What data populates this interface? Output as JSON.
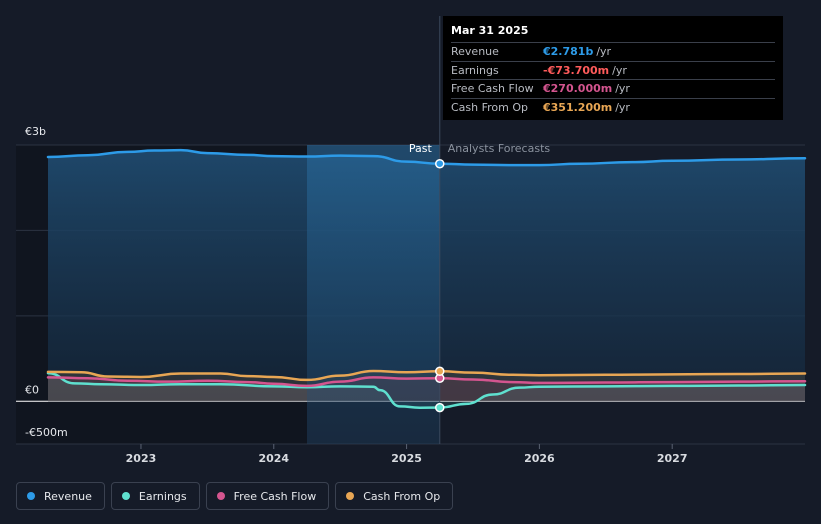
{
  "chart_data": {
    "type": "area",
    "currency": "€",
    "y_axis": {
      "ylim": [
        -500,
        3000
      ],
      "label_top": "€3b",
      "label_zero": "€0",
      "label_bottom": "-€500m"
    },
    "x_axis": {
      "xlim": [
        2022.3,
        2028.0
      ],
      "ticks": [
        2023,
        2024,
        2025,
        2026,
        2027
      ],
      "tick_labels": [
        "2023",
        "2024",
        "2025",
        "2026",
        "2027"
      ]
    },
    "divider_x": 2025.25,
    "highlight_start_x": 2024.25,
    "past_label": "Past",
    "forecast_label": "Analysts Forecasts",
    "grid": true,
    "legend_placement": "bottom-left",
    "series": [
      {
        "name": "Revenue",
        "key": "revenue",
        "color": "#2d9be8",
        "points": [
          [
            2022.3,
            2860
          ],
          [
            2022.6,
            2880
          ],
          [
            2022.9,
            2920
          ],
          [
            2023.1,
            2935
          ],
          [
            2023.3,
            2940
          ],
          [
            2023.5,
            2905
          ],
          [
            2023.8,
            2885
          ],
          [
            2024.0,
            2870
          ],
          [
            2024.25,
            2865
          ],
          [
            2024.5,
            2875
          ],
          [
            2024.75,
            2870
          ],
          [
            2025.0,
            2805
          ],
          [
            2025.25,
            2781
          ],
          [
            2025.5,
            2770
          ],
          [
            2025.8,
            2765
          ],
          [
            2026.0,
            2765
          ],
          [
            2026.3,
            2780
          ],
          [
            2026.7,
            2800
          ],
          [
            2027.0,
            2815
          ],
          [
            2027.5,
            2830
          ],
          [
            2028.0,
            2845
          ]
        ]
      },
      {
        "name": "Earnings",
        "key": "earnings",
        "color": "#5fe0cf",
        "points": [
          [
            2022.3,
            330
          ],
          [
            2022.5,
            210
          ],
          [
            2022.7,
            200
          ],
          [
            2023.0,
            190
          ],
          [
            2023.3,
            200
          ],
          [
            2023.6,
            200
          ],
          [
            2024.0,
            175
          ],
          [
            2024.25,
            165
          ],
          [
            2024.5,
            175
          ],
          [
            2024.75,
            170
          ],
          [
            2024.8,
            130
          ],
          [
            2024.95,
            -60
          ],
          [
            2025.1,
            -75
          ],
          [
            2025.25,
            -73.7
          ],
          [
            2025.45,
            -30
          ],
          [
            2025.65,
            80
          ],
          [
            2025.85,
            160
          ],
          [
            2026.0,
            170
          ],
          [
            2026.5,
            175
          ],
          [
            2027.0,
            180
          ],
          [
            2027.5,
            185
          ],
          [
            2028.0,
            190
          ]
        ]
      },
      {
        "name": "Free Cash Flow",
        "key": "fcf",
        "color": "#d4558f",
        "points": [
          [
            2022.3,
            280
          ],
          [
            2022.6,
            270
          ],
          [
            2022.9,
            240
          ],
          [
            2023.2,
            230
          ],
          [
            2023.5,
            240
          ],
          [
            2023.8,
            225
          ],
          [
            2024.0,
            205
          ],
          [
            2024.25,
            180
          ],
          [
            2024.5,
            230
          ],
          [
            2024.75,
            280
          ],
          [
            2025.0,
            265
          ],
          [
            2025.25,
            270
          ],
          [
            2025.5,
            255
          ],
          [
            2025.8,
            225
          ],
          [
            2026.0,
            215
          ],
          [
            2026.5,
            220
          ],
          [
            2027.0,
            225
          ],
          [
            2027.5,
            230
          ],
          [
            2028.0,
            235
          ]
        ]
      },
      {
        "name": "Cash From Op",
        "key": "cfo",
        "color": "#e8a654",
        "points": [
          [
            2022.3,
            345
          ],
          [
            2022.55,
            340
          ],
          [
            2022.75,
            290
          ],
          [
            2023.0,
            285
          ],
          [
            2023.3,
            325
          ],
          [
            2023.6,
            325
          ],
          [
            2023.8,
            295
          ],
          [
            2024.0,
            285
          ],
          [
            2024.25,
            250
          ],
          [
            2024.5,
            300
          ],
          [
            2024.75,
            355
          ],
          [
            2025.0,
            340
          ],
          [
            2025.25,
            351.2
          ],
          [
            2025.5,
            335
          ],
          [
            2025.8,
            310
          ],
          [
            2026.0,
            305
          ],
          [
            2026.5,
            310
          ],
          [
            2027.0,
            315
          ],
          [
            2027.5,
            320
          ],
          [
            2028.0,
            325
          ]
        ]
      }
    ]
  },
  "tooltip": {
    "date": "Mar 31 2025",
    "rows": [
      {
        "label": "Revenue",
        "value": "€2.781b",
        "unit": "/yr",
        "color": "#2d9be8"
      },
      {
        "label": "Earnings",
        "value": "-€73.700m",
        "unit": "/yr",
        "color": "#ff5b5b"
      },
      {
        "label": "Free Cash Flow",
        "value": "€270.000m",
        "unit": "/yr",
        "color": "#d4558f"
      },
      {
        "label": "Cash From Op",
        "value": "€351.200m",
        "unit": "/yr",
        "color": "#e8a654"
      }
    ]
  },
  "legend": [
    {
      "label": "Revenue",
      "color": "#2d9be8"
    },
    {
      "label": "Earnings",
      "color": "#5fe0cf"
    },
    {
      "label": "Free Cash Flow",
      "color": "#d4558f"
    },
    {
      "label": "Cash From Op",
      "color": "#e8a654"
    }
  ]
}
